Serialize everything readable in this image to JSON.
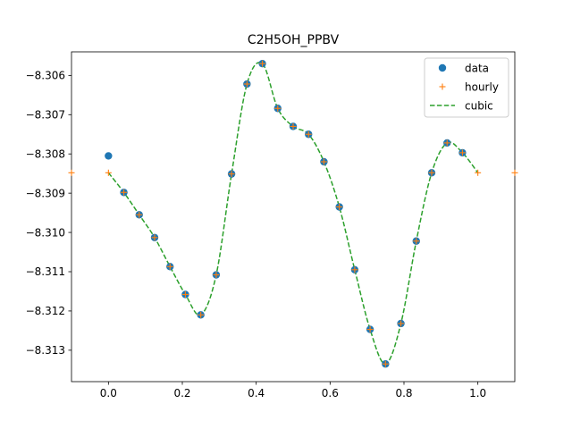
{
  "chart_data": {
    "type": "line",
    "title": "C2H5OH_PPBV",
    "xlabel": "",
    "ylabel": "",
    "xlim": [
      -0.1,
      1.1
    ],
    "ylim": [
      -8.3138,
      -8.3054
    ],
    "grid": false,
    "legend_position": "top-right",
    "x_ticks": [
      0.0,
      0.2,
      0.4,
      0.6,
      0.8,
      1.0
    ],
    "x_tick_labels": [
      "0.0",
      "0.2",
      "0.4",
      "0.6",
      "0.8",
      "1.0"
    ],
    "y_ticks": [
      -8.313,
      -8.312,
      -8.311,
      -8.31,
      -8.309,
      -8.308,
      -8.307,
      -8.306
    ],
    "y_tick_labels": [
      "−8.313",
      "−8.312",
      "−8.311",
      "−8.310",
      "−8.309",
      "−8.308",
      "−8.307",
      "−8.306"
    ],
    "series": [
      {
        "name": "data",
        "style": "markers-circle",
        "color": "#1f77b4",
        "x": [
          0.0,
          0.0417,
          0.0833,
          0.125,
          0.1667,
          0.2083,
          0.25,
          0.2917,
          0.3333,
          0.375,
          0.4167,
          0.4583,
          0.5,
          0.5417,
          0.5833,
          0.625,
          0.6667,
          0.7083,
          0.75,
          0.7917,
          0.8333,
          0.875,
          0.9167,
          0.9583
        ],
        "y": [
          -8.30805,
          -8.30898,
          -8.30955,
          -8.31013,
          -8.31087,
          -8.31158,
          -8.3121,
          -8.31108,
          -8.30851,
          -8.30622,
          -8.3057,
          -8.30684,
          -8.3073,
          -8.3075,
          -8.3082,
          -8.30935,
          -8.31095,
          -8.31247,
          -8.31335,
          -8.31232,
          -8.31022,
          -8.30848,
          -8.30772,
          -8.30797
        ]
      },
      {
        "name": "hourly",
        "style": "markers-plus",
        "color": "#ff7f0e",
        "x": [
          -0.1,
          0.0,
          0.0417,
          0.0833,
          0.125,
          0.1667,
          0.2083,
          0.25,
          0.2917,
          0.3333,
          0.375,
          0.4167,
          0.4583,
          0.5,
          0.5417,
          0.5833,
          0.625,
          0.6667,
          0.7083,
          0.75,
          0.7917,
          0.8333,
          0.875,
          0.9167,
          0.9583,
          1.0,
          1.1
        ],
        "y": [
          -8.30848,
          -8.30848,
          -8.30898,
          -8.30955,
          -8.31013,
          -8.31087,
          -8.31158,
          -8.3121,
          -8.31108,
          -8.30851,
          -8.30622,
          -8.3057,
          -8.30684,
          -8.3073,
          -8.3075,
          -8.3082,
          -8.30935,
          -8.31095,
          -8.31247,
          -8.31335,
          -8.31232,
          -8.31022,
          -8.30848,
          -8.30772,
          -8.30797,
          -8.30848,
          -8.30848
        ]
      },
      {
        "name": "cubic",
        "style": "dashed-line",
        "color": "#2ca02c",
        "x": [
          0.0,
          0.0417,
          0.0833,
          0.125,
          0.1667,
          0.2083,
          0.25,
          0.2917,
          0.3333,
          0.375,
          0.4167,
          0.4583,
          0.5,
          0.5417,
          0.5833,
          0.625,
          0.6667,
          0.7083,
          0.75,
          0.7917,
          0.8333,
          0.875,
          0.9167,
          0.9583,
          1.0
        ],
        "y": [
          -8.30848,
          -8.30898,
          -8.30955,
          -8.31013,
          -8.31087,
          -8.31158,
          -8.3121,
          -8.31108,
          -8.30851,
          -8.30622,
          -8.3057,
          -8.30684,
          -8.3073,
          -8.3075,
          -8.3082,
          -8.30935,
          -8.31095,
          -8.31247,
          -8.31335,
          -8.31232,
          -8.31022,
          -8.30848,
          -8.30772,
          -8.30797,
          -8.30848
        ]
      }
    ]
  }
}
